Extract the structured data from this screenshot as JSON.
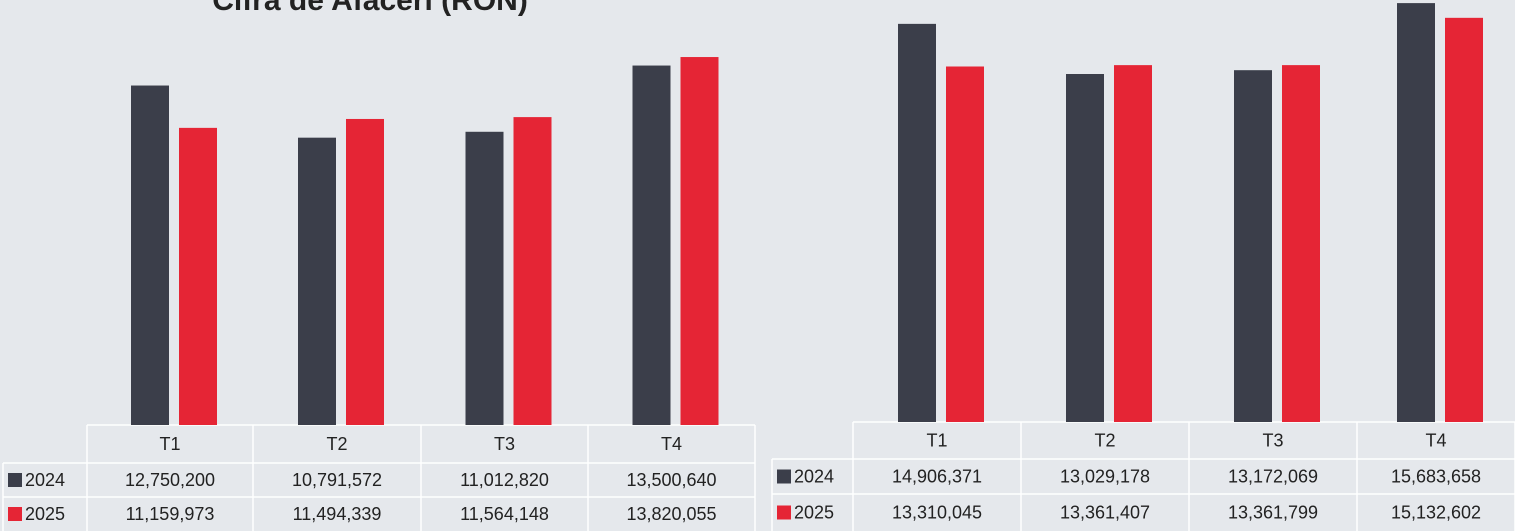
{
  "chart_data": [
    {
      "type": "bar",
      "title": "Cifra de Afaceri (RON)",
      "categories": [
        "T1",
        "T2",
        "T3",
        "T4"
      ],
      "series": [
        {
          "name": "2024",
          "color": "#3b3e4a",
          "values": [
            12750200,
            10791572,
            11012820,
            13500640
          ],
          "value_labels": [
            "12,750,200",
            "10,791,572",
            "11,012,820",
            "13,500,640"
          ]
        },
        {
          "name": "2025",
          "color": "#e52535",
          "values": [
            11159973,
            11494339,
            11564148,
            13820055
          ],
          "value_labels": [
            "11,159,973",
            "11,494,339",
            "11,564,148",
            "13,820,055"
          ]
        }
      ],
      "ylim": [
        0,
        16000000
      ]
    },
    {
      "type": "bar",
      "categories": [
        "T1",
        "T2",
        "T3",
        "T4"
      ],
      "series": [
        {
          "name": "2024",
          "color": "#3b3e4a",
          "values": [
            14906371,
            13029178,
            13172069,
            15683658
          ],
          "value_labels": [
            "14,906,371",
            "13,029,178",
            "13,172,069",
            "15,683,658"
          ]
        },
        {
          "name": "2025",
          "color": "#e52535",
          "values": [
            13310045,
            13361407,
            13361799,
            15132602
          ],
          "value_labels": [
            "13,310,045",
            "13,361,407",
            "13,361,799",
            "15,132,602"
          ]
        }
      ],
      "ylim": [
        0,
        15800000
      ]
    }
  ]
}
